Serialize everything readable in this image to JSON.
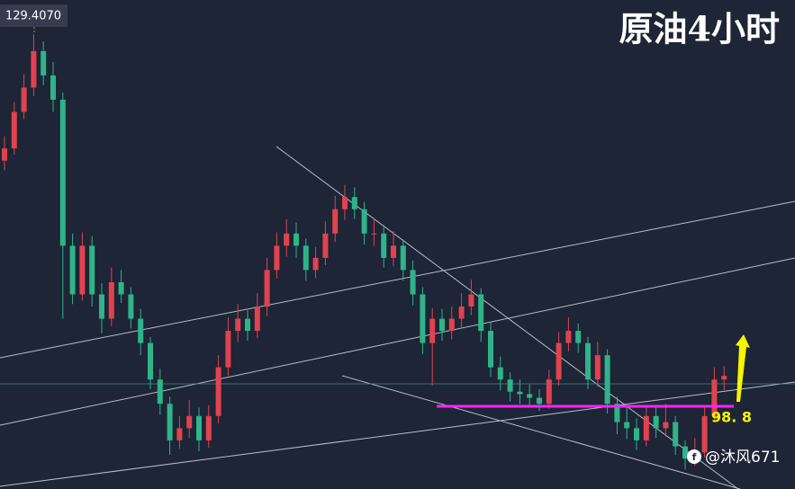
{
  "chart_data": {
    "type": "candlestick",
    "title": "原油4小时",
    "ylim": [
      92.0,
      132.2
    ],
    "up_color": "#e0434f",
    "down_color": "#2fb489",
    "price_label": {
      "value": 129.407,
      "label": "129.4070"
    },
    "annotations": [
      {
        "value": 98.8,
        "label": "98. 8",
        "color": "#ff22ff"
      }
    ],
    "ohlc": [
      [
        119.0,
        121.0,
        118.2,
        120.0
      ],
      [
        120.0,
        123.8,
        119.5,
        123.0
      ],
      [
        123.0,
        126.1,
        122.4,
        125.0
      ],
      [
        125.0,
        129.407,
        124.3,
        128.0
      ],
      [
        128.0,
        128.8,
        125.2,
        126.0
      ],
      [
        126.0,
        127.1,
        123.0,
        124.0
      ],
      [
        124.0,
        124.6,
        106.0,
        112.0
      ],
      [
        112.0,
        113.0,
        107.2,
        108.0
      ],
      [
        108.0,
        113.1,
        107.5,
        112.0
      ],
      [
        112.0,
        112.8,
        107.0,
        108.0
      ],
      [
        108.0,
        108.9,
        104.8,
        106.0
      ],
      [
        106.0,
        110.2,
        105.4,
        109.0
      ],
      [
        109.0,
        110.0,
        107.3,
        108.0
      ],
      [
        108.0,
        108.6,
        105.2,
        106.0
      ],
      [
        106.0,
        106.8,
        103.0,
        104.0
      ],
      [
        104.0,
        104.5,
        100.2,
        101.0
      ],
      [
        101.0,
        101.9,
        98.1,
        99.0
      ],
      [
        99.0,
        99.6,
        94.8,
        96.0
      ],
      [
        96.0,
        98.0,
        95.3,
        97.0
      ],
      [
        97.0,
        99.3,
        96.2,
        98.0
      ],
      [
        98.0,
        98.7,
        95.1,
        96.0
      ],
      [
        96.0,
        98.9,
        95.4,
        98.0
      ],
      [
        98.0,
        103.0,
        97.4,
        102.0
      ],
      [
        102.0,
        106.1,
        101.3,
        105.0
      ],
      [
        105.0,
        107.2,
        104.1,
        106.0
      ],
      [
        106.0,
        106.7,
        104.2,
        105.0
      ],
      [
        105.0,
        108.1,
        104.4,
        107.0
      ],
      [
        107.0,
        111.0,
        106.2,
        110.0
      ],
      [
        110.0,
        113.1,
        109.3,
        112.0
      ],
      [
        112.0,
        114.2,
        111.1,
        113.0
      ],
      [
        113.0,
        113.9,
        111.0,
        112.0
      ],
      [
        112.0,
        112.6,
        109.1,
        110.0
      ],
      [
        110.0,
        111.9,
        109.3,
        111.0
      ],
      [
        111.0,
        114.0,
        110.4,
        113.0
      ],
      [
        113.0,
        116.1,
        112.3,
        115.0
      ],
      [
        115.0,
        117.0,
        114.1,
        116.0
      ],
      [
        116.0,
        116.8,
        114.2,
        115.0
      ],
      [
        115.0,
        115.6,
        112.1,
        113.0
      ],
      [
        113.0,
        114.3,
        112.0,
        113.0
      ],
      [
        113.0,
        113.7,
        110.2,
        111.0
      ],
      [
        111.0,
        113.2,
        110.3,
        112.0
      ],
      [
        112.0,
        112.5,
        109.1,
        110.0
      ],
      [
        110.0,
        110.8,
        107.1,
        108.0
      ],
      [
        108.0,
        108.6,
        103.1,
        104.0
      ],
      [
        104.0,
        106.9,
        100.5,
        106.0
      ],
      [
        106.0,
        106.8,
        104.2,
        105.0
      ],
      [
        105.0,
        107.0,
        104.3,
        106.0
      ],
      [
        106.0,
        108.1,
        105.2,
        107.0
      ],
      [
        107.0,
        109.2,
        106.3,
        108.0
      ],
      [
        108.0,
        108.5,
        104.1,
        105.0
      ],
      [
        105.0,
        105.7,
        101.2,
        102.0
      ],
      [
        102.0,
        102.9,
        100.1,
        101.0
      ],
      [
        101.0,
        101.6,
        99.2,
        100.0
      ],
      [
        100.0,
        101.0,
        99.0,
        99.8
      ],
      [
        99.8,
        100.6,
        98.8,
        99.5
      ],
      [
        99.5,
        100.2,
        98.4,
        99.0
      ],
      [
        99.0,
        101.8,
        98.6,
        101.0
      ],
      [
        101.0,
        104.9,
        100.5,
        104.0
      ],
      [
        104.0,
        106.1,
        103.3,
        105.0
      ],
      [
        105.0,
        105.6,
        103.2,
        104.0
      ],
      [
        104.0,
        104.5,
        100.2,
        101.0
      ],
      [
        101.0,
        104.1,
        100.4,
        103.0
      ],
      [
        103.0,
        103.5,
        98.2,
        99.0
      ],
      [
        99.0,
        99.6,
        96.5,
        97.5
      ],
      [
        97.5,
        98.9,
        96.1,
        97.0
      ],
      [
        97.0,
        97.8,
        95.2,
        96.0
      ],
      [
        96.0,
        98.9,
        95.5,
        98.0
      ],
      [
        98.0,
        98.7,
        96.2,
        97.0
      ],
      [
        97.0,
        99.0,
        96.3,
        97.5
      ],
      [
        97.5,
        98.0,
        94.8,
        95.5
      ],
      [
        95.5,
        96.0,
        93.6,
        94.5
      ],
      [
        94.5,
        96.2,
        93.9,
        95.0
      ],
      [
        95.0,
        98.7,
        94.6,
        98.0
      ],
      [
        98.0,
        102.0,
        97.5,
        101.0
      ],
      [
        101.0,
        102.1,
        100.1,
        101.3
      ]
    ]
  },
  "watermark": "@沐风671"
}
